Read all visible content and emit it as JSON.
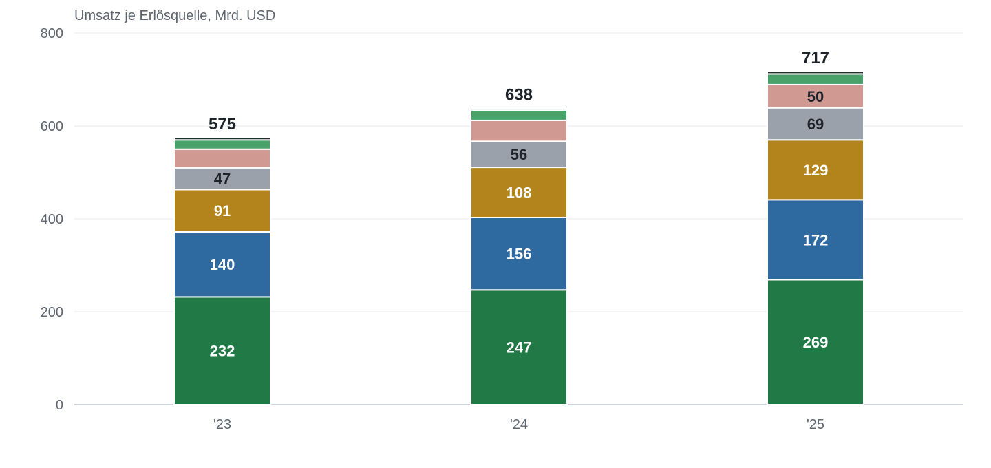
{
  "chart_data": {
    "type": "bar",
    "stacked": true,
    "title": "Umsatz je Erlösquelle, Mrd. USD",
    "categories": [
      "'23",
      "'24",
      "'25"
    ],
    "ylim": [
      0,
      800
    ],
    "yticks": [
      0,
      200,
      400,
      600,
      800
    ],
    "grid": true,
    "series": [
      {
        "values": [
          232,
          247,
          269
        ],
        "color": "#217a46",
        "label_color": "#ffffff",
        "labels_shown": [
          true,
          true,
          true
        ]
      },
      {
        "values": [
          140,
          156,
          172
        ],
        "color": "#2e6aa0",
        "label_color": "#ffffff",
        "labels_shown": [
          true,
          true,
          true
        ]
      },
      {
        "values": [
          91,
          108,
          129
        ],
        "color": "#b4841c",
        "label_color": "#ffffff",
        "labels_shown": [
          true,
          true,
          true
        ]
      },
      {
        "values": [
          47,
          56,
          69
        ],
        "color": "#9aa1aa",
        "label_color": "#1e2329",
        "labels_shown": [
          true,
          true,
          true
        ]
      },
      {
        "values": [
          40,
          45,
          50
        ],
        "color": "#d09a93",
        "label_color": "#1e2329",
        "labels_shown": [
          false,
          false,
          true
        ]
      },
      {
        "values": [
          20,
          22,
          23
        ],
        "color": "#48a26a",
        "label_color": "#ffffff",
        "labels_shown": [
          false,
          false,
          false
        ]
      },
      {
        "values": [
          5,
          4,
          5
        ],
        "color": "#1e2d24",
        "label_color": "#ffffff",
        "labels_shown": [
          false,
          false,
          false
        ]
      }
    ],
    "totals": [
      575,
      638,
      717
    ]
  }
}
